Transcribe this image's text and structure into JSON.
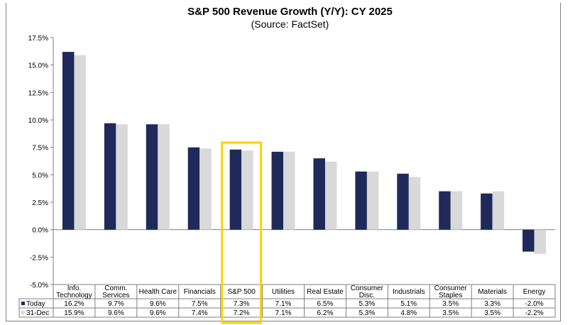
{
  "chart_data": {
    "type": "bar",
    "title": "S&P 500 Revenue Growth (Y/Y): CY 2025",
    "subtitle": "(Source: FactSet)",
    "categories": [
      [
        "Info.",
        "Technology"
      ],
      [
        "Comm.",
        "Services"
      ],
      [
        "Health Care"
      ],
      [
        "Financials"
      ],
      [
        "S&P 500"
      ],
      [
        "Utilities"
      ],
      [
        "Real Estate"
      ],
      [
        "Consumer",
        "Disc."
      ],
      [
        "Industrials"
      ],
      [
        "Consumer",
        "Staples"
      ],
      [
        "Materials"
      ],
      [
        "Energy"
      ]
    ],
    "series": [
      {
        "name": "Today",
        "color": "#1F2A5A",
        "values": [
          16.2,
          9.7,
          9.6,
          7.5,
          7.3,
          7.1,
          6.5,
          5.3,
          5.1,
          3.5,
          3.3,
          -2.0
        ],
        "labels": [
          "16.2%",
          "9.7%",
          "9.6%",
          "7.5%",
          "7.3%",
          "7.1%",
          "6.5%",
          "5.3%",
          "5.1%",
          "3.5%",
          "3.3%",
          "-2.0%"
        ]
      },
      {
        "name": "31-Dec",
        "color": "#D9D9D9",
        "values": [
          15.9,
          9.6,
          9.6,
          7.4,
          7.2,
          7.1,
          6.2,
          5.3,
          4.8,
          3.5,
          3.5,
          -2.2
        ],
        "labels": [
          "15.9%",
          "9.6%",
          "9.6%",
          "7.4%",
          "7.2%",
          "7.1%",
          "6.2%",
          "5.3%",
          "4.8%",
          "3.5%",
          "3.5%",
          "-2.2%"
        ]
      }
    ],
    "yticks": [
      "17.5%",
      "15.0%",
      "12.5%",
      "10.0%",
      "7.5%",
      "5.0%",
      "2.5%",
      "0.0%",
      "-2.5%",
      "-5.0%"
    ],
    "ylim": [
      -5.0,
      17.5
    ],
    "highlight_category": "S&P 500",
    "highlight_color": "#FFD200",
    "grid": false,
    "legend": "data-table"
  }
}
